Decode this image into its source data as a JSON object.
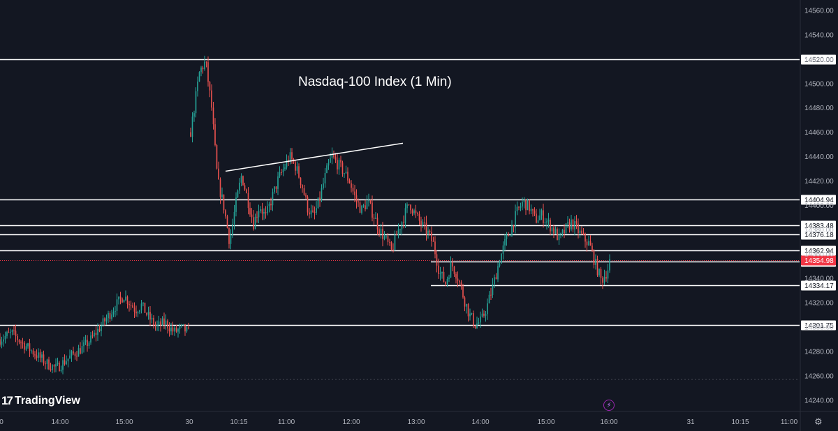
{
  "title": "Nasdaq-100 Index (1 Min)",
  "brand": {
    "logo_mark": "17",
    "name": "TradingView"
  },
  "icons": {
    "alert": "lightning-icon",
    "settings": "gear-icon"
  },
  "colors": {
    "background": "#131722",
    "up": "#26a69a",
    "down": "#ef5350",
    "level_line": "#ffffff",
    "last_price": "#f23645"
  },
  "chart_data": {
    "type": "candlestick",
    "title": "Nasdaq-100 Index (1 Min)",
    "ylim": [
      14233,
      14564
    ],
    "y_ticks": [
      14240,
      14260,
      14280,
      14300,
      14320,
      14340,
      14360,
      14380,
      14400,
      14420,
      14440,
      14460,
      14480,
      14500,
      14520,
      14540,
      14560
    ],
    "x_tick_labels": [
      "0",
      "14:00",
      "15:00",
      "30",
      "10:15",
      "11:00",
      "12:00",
      "13:00",
      "14:00",
      "15:00",
      "16:00",
      "31",
      "10:15",
      "11:00"
    ],
    "horizontal_levels": [
      {
        "price": 14520.0,
        "label": "14520.00",
        "span": "full"
      },
      {
        "price": 14404.94,
        "label": "14404.94",
        "span": "full"
      },
      {
        "price": 14383.48,
        "label": "14383.48",
        "span": "full"
      },
      {
        "price": 14376.18,
        "label": "14376.18",
        "span": "full"
      },
      {
        "price": 14362.94,
        "label": "14362.94",
        "span": "full"
      },
      {
        "price": 14353.81,
        "label": "14353.81",
        "span": "from-13:00"
      },
      {
        "price": 14334.17,
        "label": "14334.17",
        "span": "from-13:00"
      },
      {
        "price": 14301.75,
        "label": "14301.75",
        "span": "full"
      }
    ],
    "last_price": {
      "price": 14354.98,
      "label": "14354.98"
    },
    "trendline": {
      "from": {
        "time": "10:00",
        "price": 14428
      },
      "to": {
        "time": "12:45",
        "price": 14451
      }
    },
    "previous_session_path": [
      [
        0,
        14290
      ],
      [
        4,
        14295
      ],
      [
        7,
        14288
      ],
      [
        10,
        14282
      ],
      [
        13,
        14276
      ],
      [
        16,
        14270
      ],
      [
        19,
        14266
      ],
      [
        22,
        14272
      ],
      [
        25,
        14278
      ],
      [
        28,
        14283
      ],
      [
        31,
        14290
      ],
      [
        34,
        14300
      ],
      [
        37,
        14310
      ],
      [
        40,
        14320
      ],
      [
        42,
        14326
      ],
      [
        44,
        14320
      ],
      [
        46,
        14314
      ],
      [
        48,
        14318
      ],
      [
        50,
        14310
      ],
      [
        53,
        14300
      ],
      [
        56,
        14304
      ],
      [
        59,
        14296
      ],
      [
        62,
        14299
      ],
      [
        64,
        14295
      ]
    ],
    "session_path": [
      [
        0,
        14460
      ],
      [
        3,
        14510
      ],
      [
        5,
        14518
      ],
      [
        7,
        14480
      ],
      [
        9,
        14420
      ],
      [
        11,
        14400
      ],
      [
        13,
        14370
      ],
      [
        15,
        14400
      ],
      [
        17,
        14425
      ],
      [
        19,
        14405
      ],
      [
        21,
        14385
      ],
      [
        23,
        14400
      ],
      [
        25,
        14390
      ],
      [
        27,
        14405
      ],
      [
        29,
        14420
      ],
      [
        31,
        14430
      ],
      [
        33,
        14440
      ],
      [
        35,
        14432
      ],
      [
        37,
        14418
      ],
      [
        39,
        14398
      ],
      [
        41,
        14390
      ],
      [
        43,
        14405
      ],
      [
        45,
        14425
      ],
      [
        47,
        14440
      ],
      [
        49,
        14434
      ],
      [
        51,
        14428
      ],
      [
        53,
        14420
      ],
      [
        55,
        14405
      ],
      [
        57,
        14396
      ],
      [
        59,
        14403
      ],
      [
        61,
        14392
      ],
      [
        63,
        14380
      ],
      [
        65,
        14372
      ],
      [
        67,
        14362
      ],
      [
        69,
        14378
      ],
      [
        71,
        14390
      ],
      [
        73,
        14402
      ],
      [
        75,
        14392
      ],
      [
        77,
        14384
      ],
      [
        79,
        14378
      ],
      [
        81,
        14368
      ],
      [
        83,
        14345
      ],
      [
        85,
        14336
      ],
      [
        87,
        14352
      ],
      [
        89,
        14342
      ],
      [
        91,
        14325
      ],
      [
        93,
        14310
      ],
      [
        95,
        14302
      ],
      [
        97,
        14305
      ],
      [
        99,
        14318
      ],
      [
        101,
        14335
      ],
      [
        103,
        14355
      ],
      [
        105,
        14370
      ],
      [
        107,
        14382
      ],
      [
        109,
        14395
      ],
      [
        111,
        14403
      ],
      [
        113,
        14398
      ],
      [
        115,
        14388
      ],
      [
        117,
        14392
      ],
      [
        119,
        14386
      ],
      [
        121,
        14380
      ],
      [
        123,
        14372
      ],
      [
        125,
        14380
      ],
      [
        127,
        14386
      ],
      [
        129,
        14380
      ],
      [
        131,
        14373
      ],
      [
        133,
        14368
      ],
      [
        135,
        14352
      ],
      [
        137,
        14338
      ],
      [
        139,
        14346
      ],
      [
        140,
        14356
      ]
    ]
  }
}
